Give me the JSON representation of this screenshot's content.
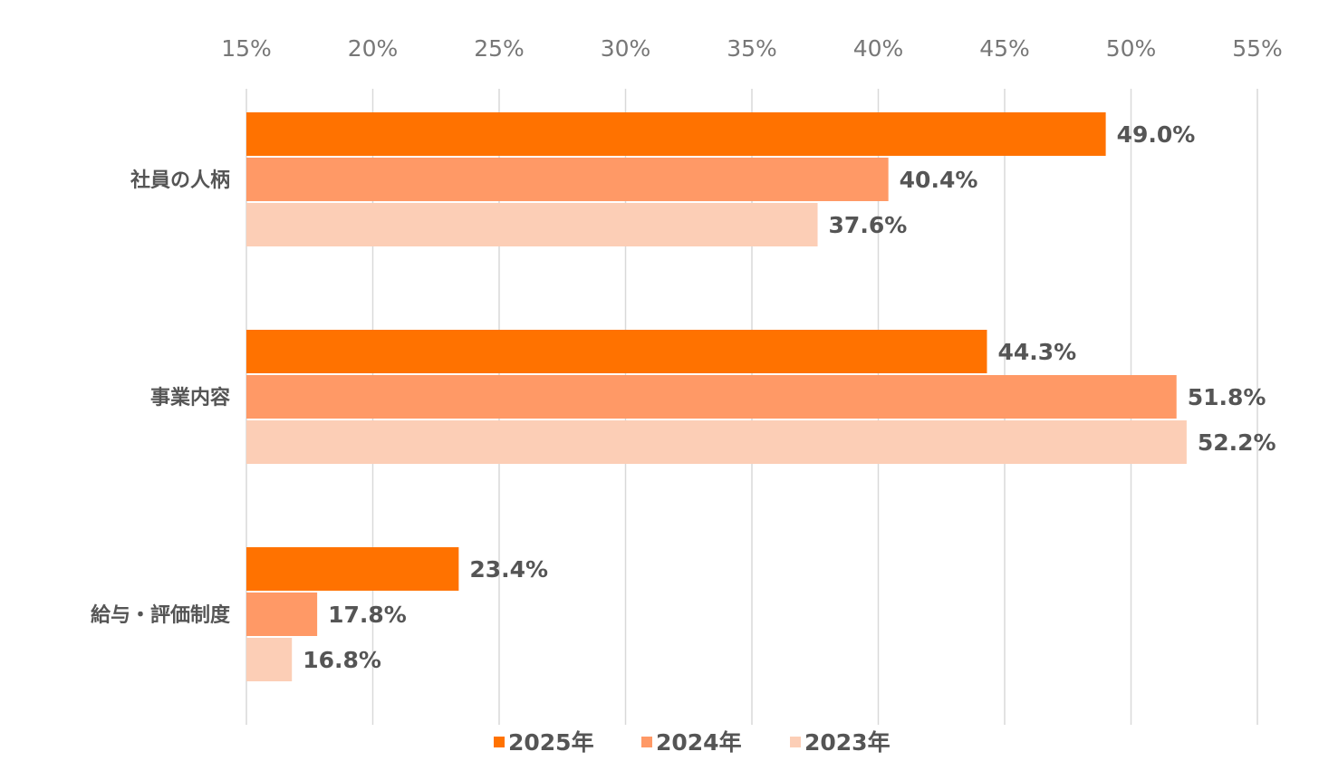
{
  "chart_data": {
    "type": "bar",
    "orientation": "horizontal",
    "categories": [
      "社員の人柄",
      "事業内容",
      "給与・評価制度"
    ],
    "series": [
      {
        "name": "2025年",
        "color": "#FF7200",
        "values": [
          49.0,
          44.3,
          23.4
        ],
        "labels": [
          "49.0%",
          "44.3%",
          "23.4%"
        ]
      },
      {
        "name": "2024年",
        "color": "#FF9966",
        "values": [
          40.4,
          51.8,
          17.8
        ],
        "labels": [
          "40.4%",
          "51.8%",
          "17.8%"
        ]
      },
      {
        "name": "2023年",
        "color": "#FCCEB6",
        "values": [
          37.6,
          52.2,
          16.8
        ],
        "labels": [
          "37.6%",
          "52.2%",
          "16.8%"
        ]
      }
    ],
    "xlim": [
      15,
      55
    ],
    "x_ticks": [
      15,
      20,
      25,
      30,
      35,
      40,
      45,
      50,
      55
    ],
    "x_tick_labels": [
      "15%",
      "20%",
      "25%",
      "30%",
      "35%",
      "40%",
      "45%",
      "50%",
      "55%"
    ],
    "x_axis_position": "top",
    "grid": true,
    "legend_position": "bottom",
    "title": "",
    "xlabel": "",
    "ylabel": ""
  }
}
